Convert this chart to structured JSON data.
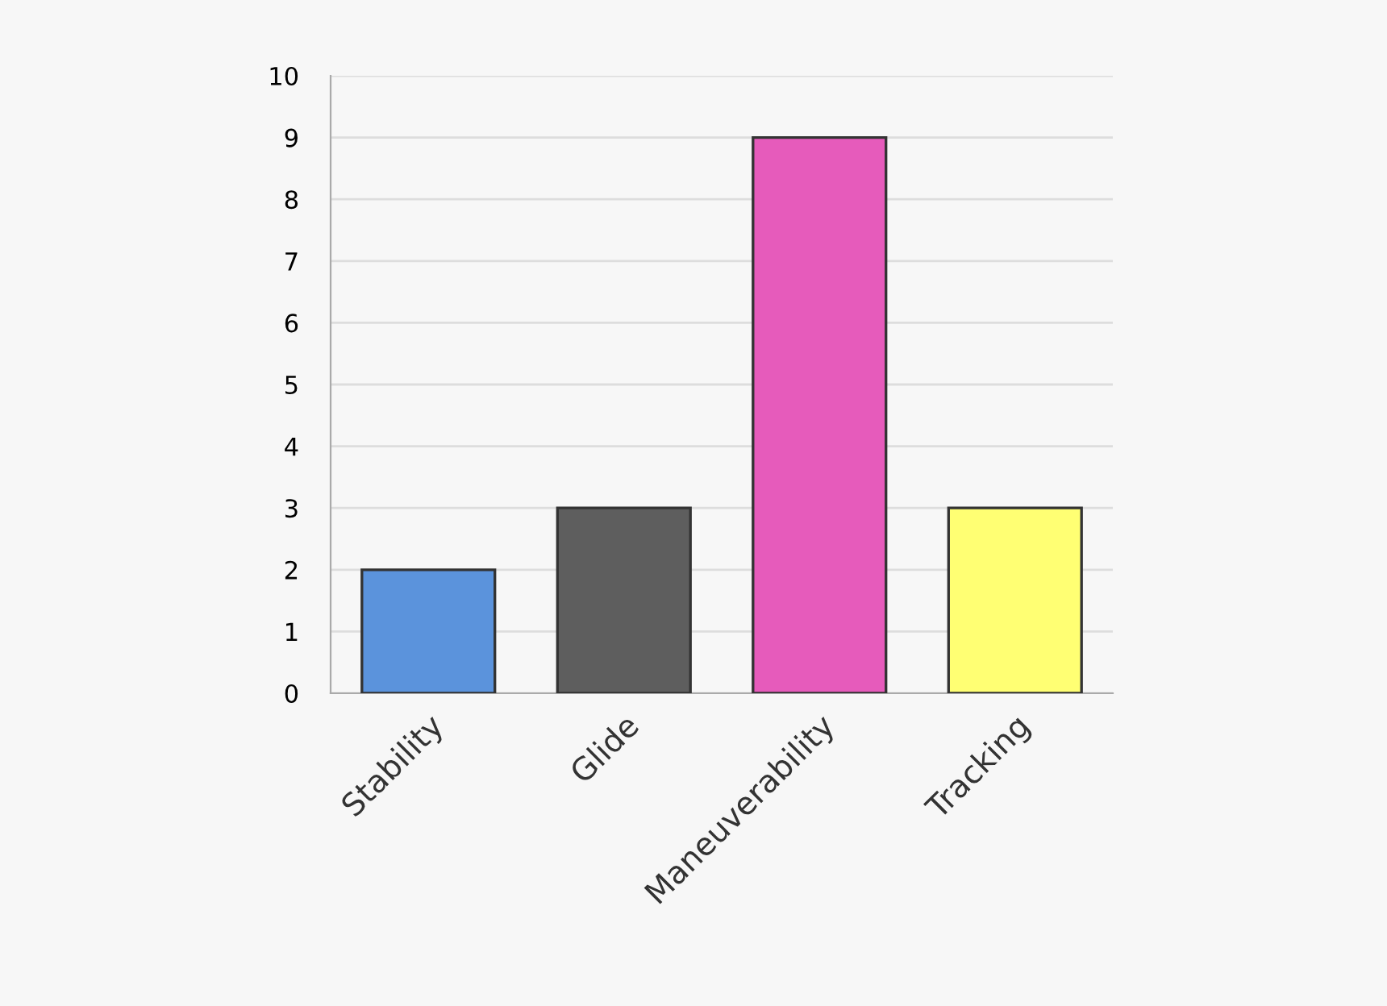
{
  "chart_data": {
    "type": "bar",
    "categories": [
      "Stability",
      "Glide",
      "Maneuverability",
      "Tracking"
    ],
    "values": [
      2,
      3,
      9,
      3
    ],
    "colors": [
      "#5b93dc",
      "#5e5e5e",
      "#e65bbb",
      "#ffff73"
    ],
    "ylim": [
      0,
      10
    ],
    "yticks": [
      0,
      1,
      2,
      3,
      4,
      5,
      6,
      7,
      8,
      9,
      10
    ],
    "grid": "y",
    "legend": false
  }
}
